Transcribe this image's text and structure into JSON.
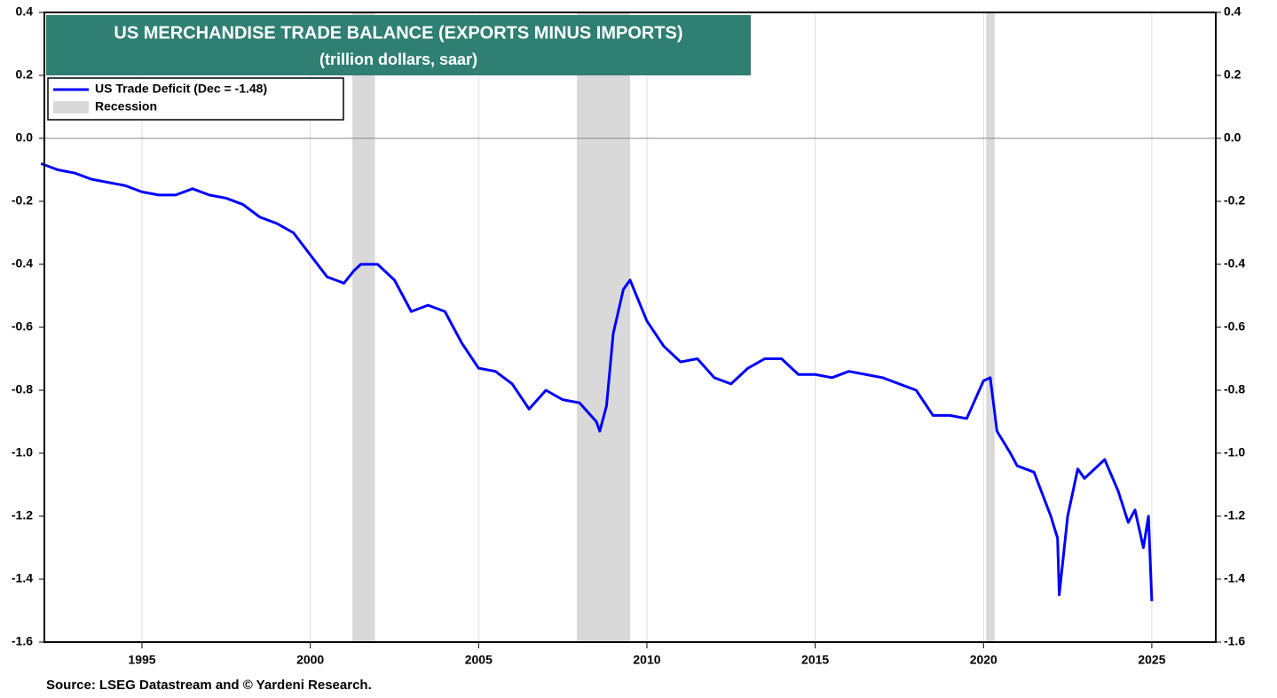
{
  "chart_data": {
    "type": "line",
    "title": "US MERCHANDISE TRADE BALANCE (EXPORTS MINUS IMPORTS)",
    "subtitle": "(trillion dollars, saar)",
    "source": "Source: LSEG Datastream and © Yardeni Research.",
    "x": [
      1992.0,
      1992.5,
      1993.0,
      1993.5,
      1994.0,
      1994.5,
      1995.0,
      1995.5,
      1996.0,
      1996.5,
      1997.0,
      1997.5,
      1998.0,
      1998.5,
      1999.0,
      1999.5,
      2000.0,
      2000.5,
      2001.0,
      2001.3,
      2001.5,
      2002.0,
      2002.5,
      2003.0,
      2003.5,
      2004.0,
      2004.5,
      2005.0,
      2005.5,
      2006.0,
      2006.5,
      2007.0,
      2007.5,
      2008.0,
      2008.5,
      2008.6,
      2008.8,
      2009.0,
      2009.3,
      2009.5,
      2010.0,
      2010.5,
      2011.0,
      2011.5,
      2012.0,
      2012.5,
      2013.0,
      2013.5,
      2014.0,
      2014.5,
      2015.0,
      2015.5,
      2016.0,
      2016.5,
      2017.0,
      2017.5,
      2018.0,
      2018.5,
      2019.0,
      2019.5,
      2020.0,
      2020.2,
      2020.4,
      2020.8,
      2021.0,
      2021.5,
      2022.0,
      2022.2,
      2022.25,
      2022.5,
      2022.8,
      2023.0,
      2023.3,
      2023.6,
      2024.0,
      2024.3,
      2024.5,
      2024.75,
      2024.9,
      2025.0
    ],
    "series": [
      {
        "name": "US Trade Deficit (Dec = -1.48)",
        "color": "#0000ff",
        "values": [
          -0.08,
          -0.1,
          -0.11,
          -0.13,
          -0.14,
          -0.15,
          -0.17,
          -0.18,
          -0.18,
          -0.16,
          -0.18,
          -0.19,
          -0.21,
          -0.25,
          -0.27,
          -0.3,
          -0.37,
          -0.44,
          -0.46,
          -0.42,
          -0.4,
          -0.4,
          -0.45,
          -0.55,
          -0.53,
          -0.55,
          -0.65,
          -0.73,
          -0.74,
          -0.78,
          -0.86,
          -0.8,
          -0.83,
          -0.84,
          -0.9,
          -0.93,
          -0.85,
          -0.62,
          -0.48,
          -0.45,
          -0.58,
          -0.66,
          -0.71,
          -0.7,
          -0.76,
          -0.78,
          -0.73,
          -0.7,
          -0.7,
          -0.75,
          -0.75,
          -0.76,
          -0.74,
          -0.75,
          -0.76,
          -0.78,
          -0.8,
          -0.88,
          -0.88,
          -0.89,
          -0.77,
          -0.76,
          -0.93,
          -1.0,
          -1.04,
          -1.06,
          -1.2,
          -1.27,
          -1.45,
          -1.2,
          -1.05,
          -1.08,
          -1.05,
          -1.02,
          -1.12,
          -1.22,
          -1.18,
          -1.3,
          -1.2,
          -1.47
        ]
      }
    ],
    "recession": {
      "name": "Recession",
      "color": "#d9d9d9",
      "spans": [
        [
          2001.25,
          2001.92
        ],
        [
          2007.92,
          2009.5
        ],
        [
          2020.08,
          2020.33
        ]
      ]
    },
    "xlim": [
      1992.1,
      2026.9
    ],
    "xticks": [
      1995,
      2000,
      2005,
      2010,
      2015,
      2020,
      2025
    ],
    "ylim": [
      -1.6,
      0.4
    ],
    "yticks": [
      0.4,
      0.2,
      {
        "value": 0,
        "label": "0.0"
      },
      -0.2,
      -0.4,
      -0.6,
      -0.8,
      {
        "value": -1,
        "label": "-1.0"
      },
      -1.2,
      -1.4,
      -1.6
    ],
    "grid": true,
    "legend": "upper left"
  }
}
